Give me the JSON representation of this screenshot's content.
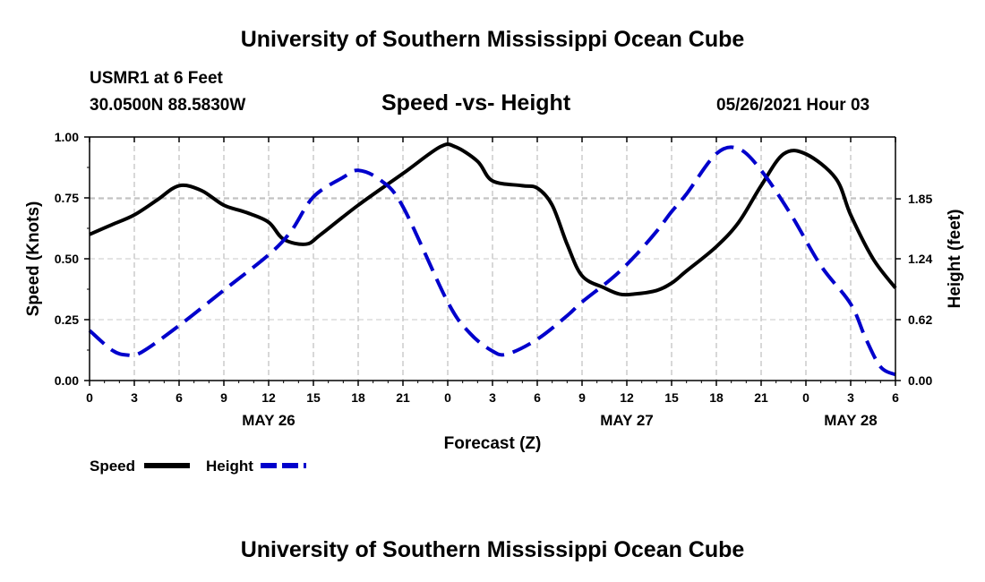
{
  "header": {
    "title": "University of Southern Mississippi Ocean Cube",
    "station": "USMR1 at 6 Feet",
    "coordinates": "30.0500N  88.5830W",
    "chart_title": "Speed -vs- Height",
    "date_hour": "05/26/2021 Hour 03"
  },
  "footer": {
    "title": "University of Southern Mississippi Ocean Cube"
  },
  "chart_data": {
    "type": "line",
    "title": "Speed -vs- Height",
    "xlabel": "Forecast (Z)",
    "x_unit": "hours from 00Z May 26",
    "xlim": [
      0,
      54
    ],
    "x_ticks": [
      0,
      3,
      6,
      9,
      12,
      15,
      18,
      21,
      24,
      27,
      30,
      33,
      36,
      39,
      42,
      45,
      48,
      51,
      54
    ],
    "x_tick_labels": [
      "0",
      "3",
      "6",
      "9",
      "12",
      "15",
      "18",
      "21",
      "0",
      "3",
      "6",
      "9",
      "12",
      "15",
      "18",
      "21",
      "0",
      "3",
      "6"
    ],
    "day_labels": [
      {
        "x": 12,
        "label": "MAY 26"
      },
      {
        "x": 36,
        "label": "MAY 27"
      },
      {
        "x": 51,
        "label": "MAY 28"
      }
    ],
    "y_left": {
      "label": "Speed (Knots)",
      "lim": [
        0,
        1
      ],
      "ticks": [
        0,
        0.25,
        0.5,
        0.75,
        1.0
      ],
      "tick_labels": [
        "0.00",
        "0.25",
        "0.50",
        "0.75",
        "1.00"
      ]
    },
    "y_right": {
      "label": "Height (feet)",
      "lim": [
        0,
        2.48
      ],
      "ticks": [
        0,
        0.62,
        1.24,
        1.85
      ],
      "tick_labels": [
        "0.00",
        "0.62",
        "1.24",
        "1.85"
      ]
    },
    "grid": true,
    "legend_position": "bottom-left",
    "series": [
      {
        "name": "Speed",
        "axis": "left",
        "color": "#000000",
        "dash": "solid",
        "x": [
          0,
          1.5,
          3,
          4.5,
          6,
          7.5,
          9,
          10.5,
          12,
          13,
          14.5,
          15.5,
          18,
          21,
          23.5,
          24.5,
          26,
          27,
          29,
          30,
          31,
          32,
          33,
          34.5,
          35.5,
          36.5,
          38,
          39,
          40,
          42,
          43.5,
          45,
          46.5,
          48,
          50,
          51,
          52.5,
          54
        ],
        "values": [
          0.6,
          0.64,
          0.68,
          0.74,
          0.8,
          0.78,
          0.72,
          0.69,
          0.65,
          0.58,
          0.56,
          0.6,
          0.72,
          0.85,
          0.96,
          0.96,
          0.9,
          0.82,
          0.8,
          0.79,
          0.72,
          0.56,
          0.43,
          0.38,
          0.355,
          0.355,
          0.37,
          0.4,
          0.45,
          0.55,
          0.65,
          0.8,
          0.93,
          0.93,
          0.83,
          0.68,
          0.5,
          0.38
        ]
      },
      {
        "name": "Height",
        "axis": "right",
        "color": "#0000cc",
        "dash": "dashed",
        "x": [
          0,
          1.5,
          2.5,
          3.5,
          6,
          9,
          12,
          13.5,
          15,
          17,
          18,
          19.5,
          21,
          24,
          25.5,
          27,
          28,
          30,
          32,
          33,
          35,
          36.5,
          38,
          39,
          40,
          42,
          43.5,
          45,
          47,
          49,
          51,
          52,
          53,
          54
        ],
        "values": [
          0.51,
          0.31,
          0.26,
          0.29,
          0.56,
          0.92,
          1.28,
          1.52,
          1.87,
          2.07,
          2.14,
          2.04,
          1.77,
          0.8,
          0.48,
          0.3,
          0.27,
          0.42,
          0.66,
          0.8,
          1.04,
          1.26,
          1.52,
          1.72,
          1.9,
          2.31,
          2.36,
          2.14,
          1.69,
          1.17,
          0.78,
          0.43,
          0.14,
          0.06
        ]
      }
    ],
    "legend": [
      {
        "label": "Speed",
        "color": "#000000",
        "dash": "solid"
      },
      {
        "label": "Height",
        "color": "#0000cc",
        "dash": "dashed"
      }
    ]
  }
}
